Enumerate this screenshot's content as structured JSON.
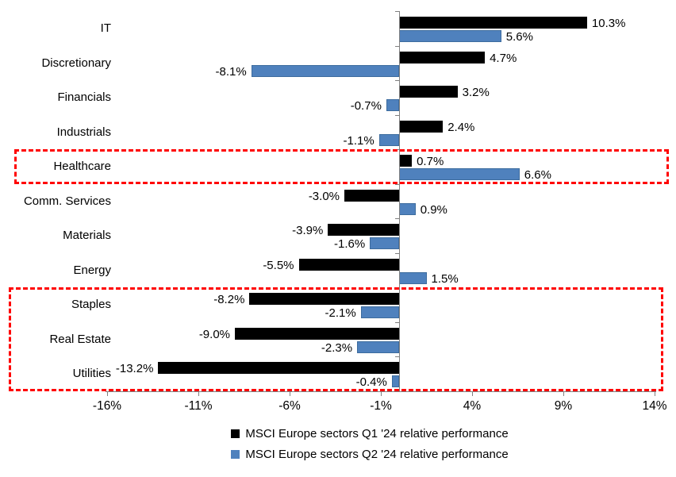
{
  "chart_data": {
    "type": "bar",
    "orientation": "horizontal",
    "title": "",
    "categories": [
      "IT",
      "Discretionary",
      "Financials",
      "Industrials",
      "Healthcare",
      "Comm. Services",
      "Materials",
      "Energy",
      "Staples",
      "Real Estate",
      "Utilities"
    ],
    "series": [
      {
        "name": "MSCI Europe sectors Q1 '24 relative performance",
        "color": "#000000",
        "values": [
          10.3,
          4.7,
          3.2,
          2.4,
          0.7,
          -3.0,
          -3.9,
          -5.5,
          -8.2,
          -9.0,
          -13.2
        ],
        "labels": [
          "10.3%",
          "4.7%",
          "3.2%",
          "2.4%",
          "0.7%",
          "-3.0%",
          "-3.9%",
          "-5.5%",
          "-8.2%",
          "-9.0%",
          "-13.2%"
        ]
      },
      {
        "name": "MSCI Europe sectors Q2 '24 relative performance",
        "color": "#4F81BD",
        "values": [
          5.6,
          -8.1,
          -0.7,
          -1.1,
          6.6,
          0.9,
          -1.6,
          1.5,
          -2.1,
          -2.3,
          -0.4
        ],
        "labels": [
          "5.6%",
          "-8.1%",
          "-0.7%",
          "-1.1%",
          "6.6%",
          "0.9%",
          "-1.6%",
          "1.5%",
          "-2.1%",
          "-2.3%",
          "-0.4%"
        ]
      }
    ],
    "x_ticks": [
      {
        "label": "-16%",
        "value": -16
      },
      {
        "label": "-11%",
        "value": -11
      },
      {
        "label": "-6%",
        "value": -6
      },
      {
        "label": "-1%",
        "value": -1
      },
      {
        "label": "4%",
        "value": 4
      },
      {
        "label": "9%",
        "value": 9
      },
      {
        "label": "14%",
        "value": 14
      }
    ],
    "xlim": [
      -16,
      14
    ],
    "xlabel": "",
    "ylabel": "",
    "grid": "off",
    "legend_position": "bottom-center",
    "highlight_boxes": [
      {
        "categories": [
          "Healthcare"
        ],
        "color": "#FF0000",
        "style": "dashed"
      },
      {
        "categories": [
          "Staples",
          "Real Estate",
          "Utilities"
        ],
        "color": "#FF0000",
        "style": "dashed"
      }
    ]
  },
  "colors": {
    "background": "#FFFFFF",
    "axis": "#808080",
    "text": "#000000",
    "bar_q1": "#000000",
    "bar_q2": "#4F81BD",
    "highlight": "#FF0000"
  }
}
